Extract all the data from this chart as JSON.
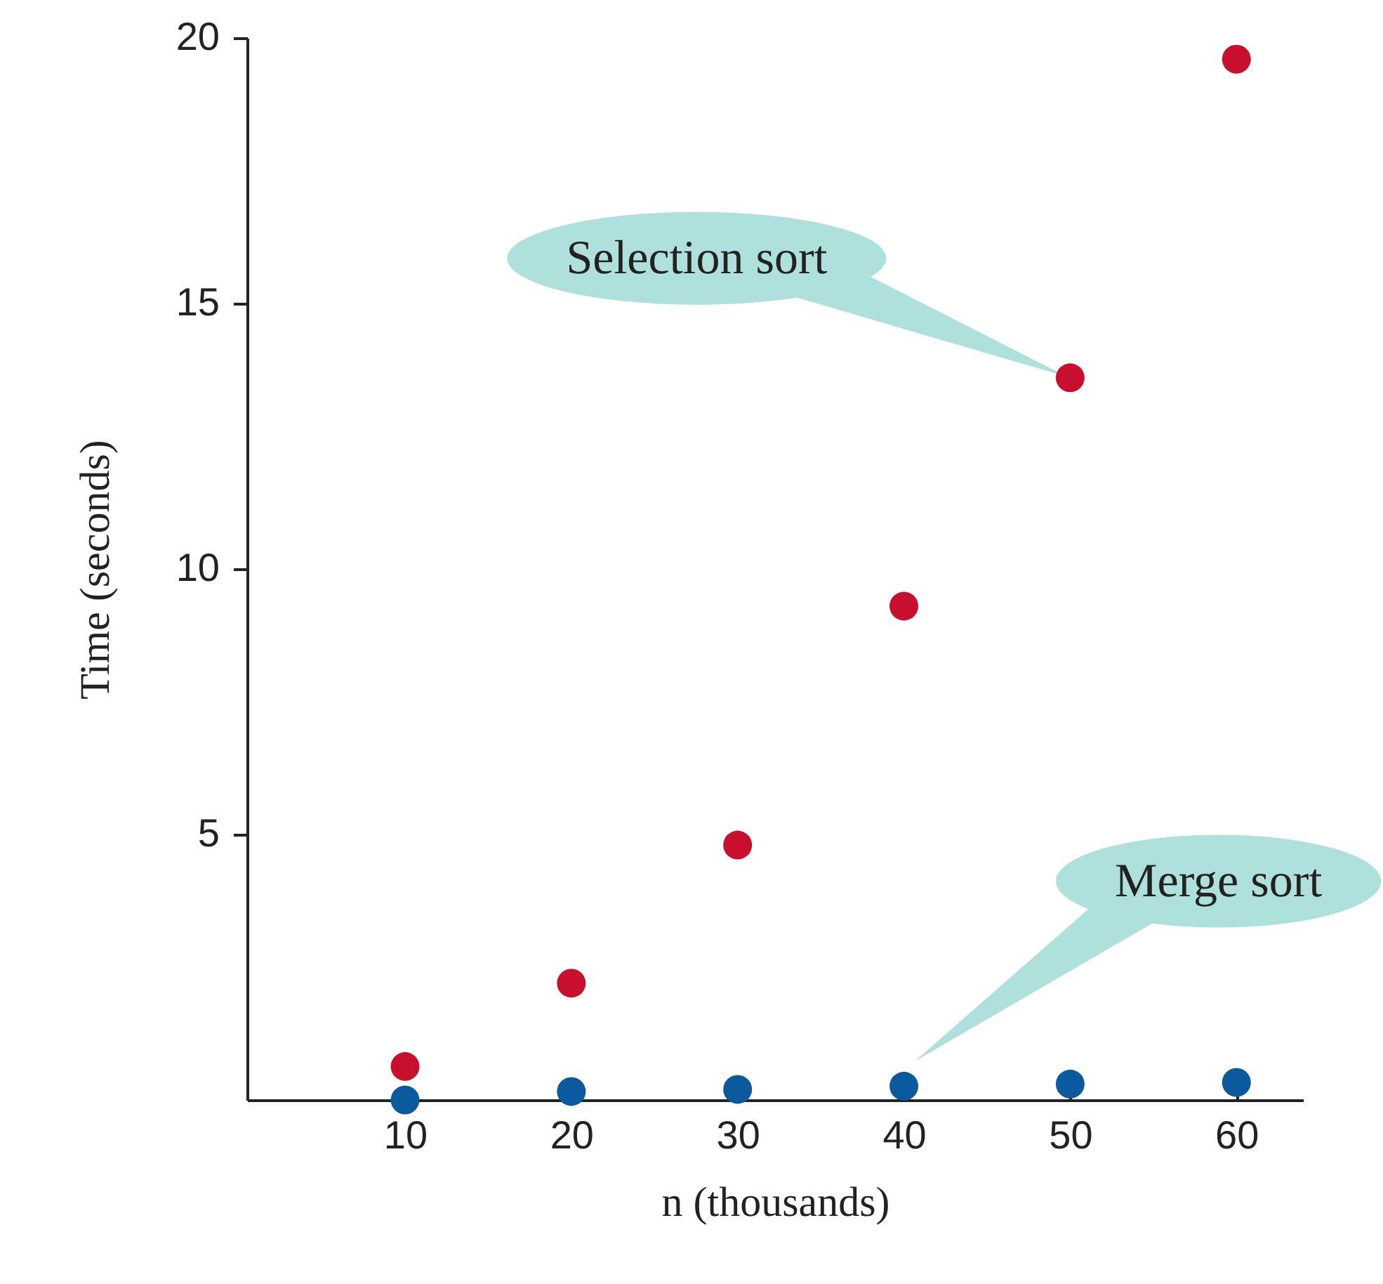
{
  "chart_data": {
    "type": "scatter",
    "xlabel": "n (thousands)",
    "ylabel": "Time (seconds)",
    "x": [
      10,
      20,
      30,
      40,
      50,
      60
    ],
    "series": [
      {
        "color": "#c8102e",
        "values": [
          0.63,
          2.2,
          4.8,
          9.3,
          13.6,
          19.6
        ]
      },
      {
        "color": "#0b5a9e",
        "values": [
          0,
          0.16,
          0.2,
          0.26,
          0.3,
          0.33
        ]
      }
    ],
    "xlim": [
      0.5,
      64
    ],
    "xticks": [
      10,
      20,
      30,
      40,
      50,
      60
    ],
    "ylim": [
      0,
      20
    ],
    "yticks": [
      5,
      10,
      15,
      20
    ],
    "annotations": [
      {
        "text": "Selection sort",
        "x": 50,
        "y": 13.6
      },
      "Merge sort"
    ],
    "marker": "circle",
    "grid": false,
    "legend": false
  }
}
